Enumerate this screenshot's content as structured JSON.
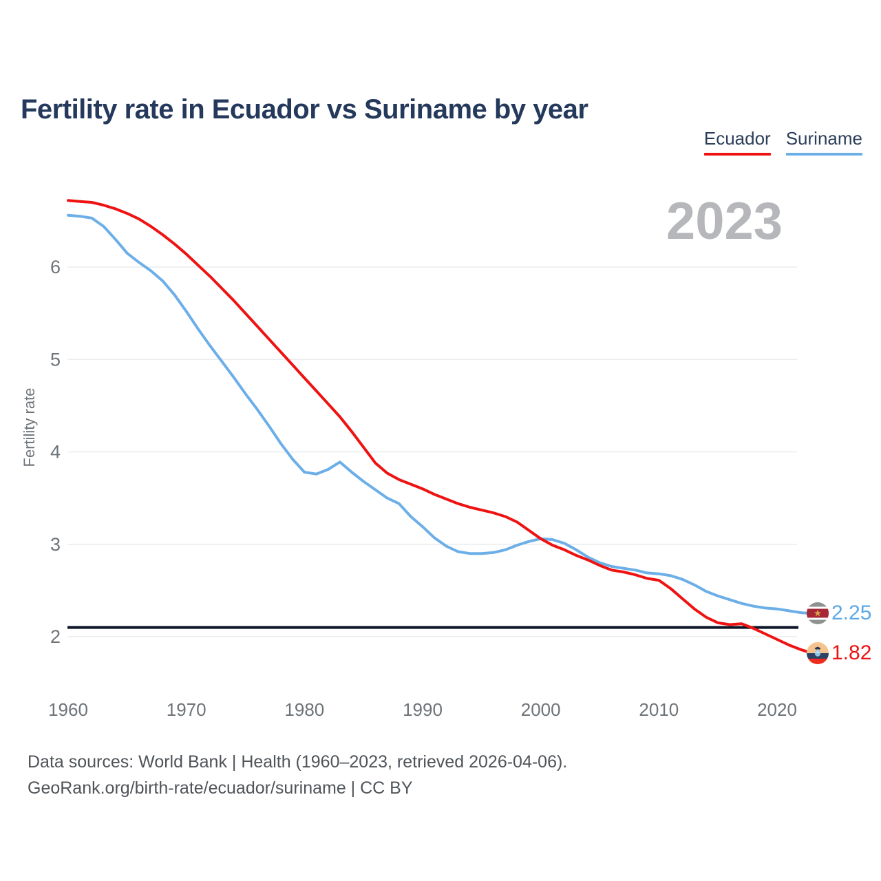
{
  "title": "Fertility rate in Ecuador vs Suriname by year",
  "watermark_year": "2023",
  "legend": [
    {
      "label": "Ecuador",
      "color": "#ee1312"
    },
    {
      "label": "Suriname",
      "color": "#6cafe8"
    }
  ],
  "y_axis": {
    "title": "Fertility rate",
    "ticks": [
      2,
      3,
      4,
      5,
      6
    ]
  },
  "x_axis": {
    "ticks": [
      1960,
      1970,
      1980,
      1990,
      2000,
      2010,
      2020
    ]
  },
  "reference_line": {
    "value": 2.1,
    "color": "#0c1526"
  },
  "end_labels": [
    {
      "series": "Suriname",
      "value": "2.25",
      "flag": "suriname-flag",
      "color": "#5ba8e6"
    },
    {
      "series": "Ecuador",
      "value": "1.82",
      "flag": "ecuador-flag",
      "color": "#ee1312"
    }
  ],
  "footer": {
    "line1": "Data sources: World Bank | Health (1960–2023, retrieved 2026-04-06).",
    "line2": "GeoRank.org/birth-rate/ecuador/suriname | CC BY"
  },
  "chart_data": {
    "type": "line",
    "title": "Fertility rate in Ecuador vs Suriname by year",
    "xlabel": "",
    "ylabel": "Fertility rate",
    "xlim": [
      1960,
      2023
    ],
    "ylim": [
      1.7,
      6.9
    ],
    "grid": true,
    "legend_position": "top-right",
    "reference_line_value": 2.1,
    "x": [
      1960,
      1961,
      1962,
      1963,
      1964,
      1965,
      1966,
      1967,
      1968,
      1969,
      1970,
      1971,
      1972,
      1973,
      1974,
      1975,
      1976,
      1977,
      1978,
      1979,
      1980,
      1981,
      1982,
      1983,
      1984,
      1985,
      1986,
      1987,
      1988,
      1989,
      1990,
      1991,
      1992,
      1993,
      1994,
      1995,
      1996,
      1997,
      1998,
      1999,
      2000,
      2001,
      2002,
      2003,
      2004,
      2005,
      2006,
      2007,
      2008,
      2009,
      2010,
      2011,
      2012,
      2013,
      2014,
      2015,
      2016,
      2017,
      2018,
      2019,
      2020,
      2021,
      2022,
      2023
    ],
    "series": [
      {
        "name": "Ecuador",
        "color": "#ee1312",
        "values": [
          6.72,
          6.71,
          6.7,
          6.67,
          6.63,
          6.58,
          6.52,
          6.44,
          6.35,
          6.25,
          6.14,
          6.02,
          5.9,
          5.77,
          5.64,
          5.5,
          5.36,
          5.22,
          5.08,
          4.94,
          4.8,
          4.66,
          4.52,
          4.38,
          4.22,
          4.05,
          3.88,
          3.77,
          3.7,
          3.65,
          3.6,
          3.54,
          3.49,
          3.44,
          3.4,
          3.37,
          3.34,
          3.3,
          3.24,
          3.15,
          3.06,
          2.99,
          2.94,
          2.88,
          2.83,
          2.77,
          2.72,
          2.7,
          2.67,
          2.63,
          2.61,
          2.52,
          2.41,
          2.3,
          2.21,
          2.15,
          2.13,
          2.14,
          2.09,
          2.03,
          1.97,
          1.91,
          1.86,
          1.82
        ]
      },
      {
        "name": "Suriname",
        "color": "#6cafe8",
        "values": [
          6.56,
          6.55,
          6.53,
          6.44,
          6.3,
          6.15,
          6.05,
          5.96,
          5.85,
          5.7,
          5.52,
          5.33,
          5.15,
          4.98,
          4.81,
          4.63,
          4.46,
          4.28,
          4.09,
          3.92,
          3.78,
          3.76,
          3.81,
          3.89,
          3.78,
          3.68,
          3.59,
          3.5,
          3.44,
          3.3,
          3.19,
          3.07,
          2.98,
          2.92,
          2.9,
          2.9,
          2.91,
          2.94,
          2.99,
          3.03,
          3.06,
          3.05,
          3.01,
          2.94,
          2.86,
          2.8,
          2.76,
          2.74,
          2.72,
          2.69,
          2.68,
          2.66,
          2.62,
          2.56,
          2.49,
          2.44,
          2.4,
          2.36,
          2.33,
          2.31,
          2.3,
          2.28,
          2.26,
          2.25
        ]
      }
    ]
  }
}
